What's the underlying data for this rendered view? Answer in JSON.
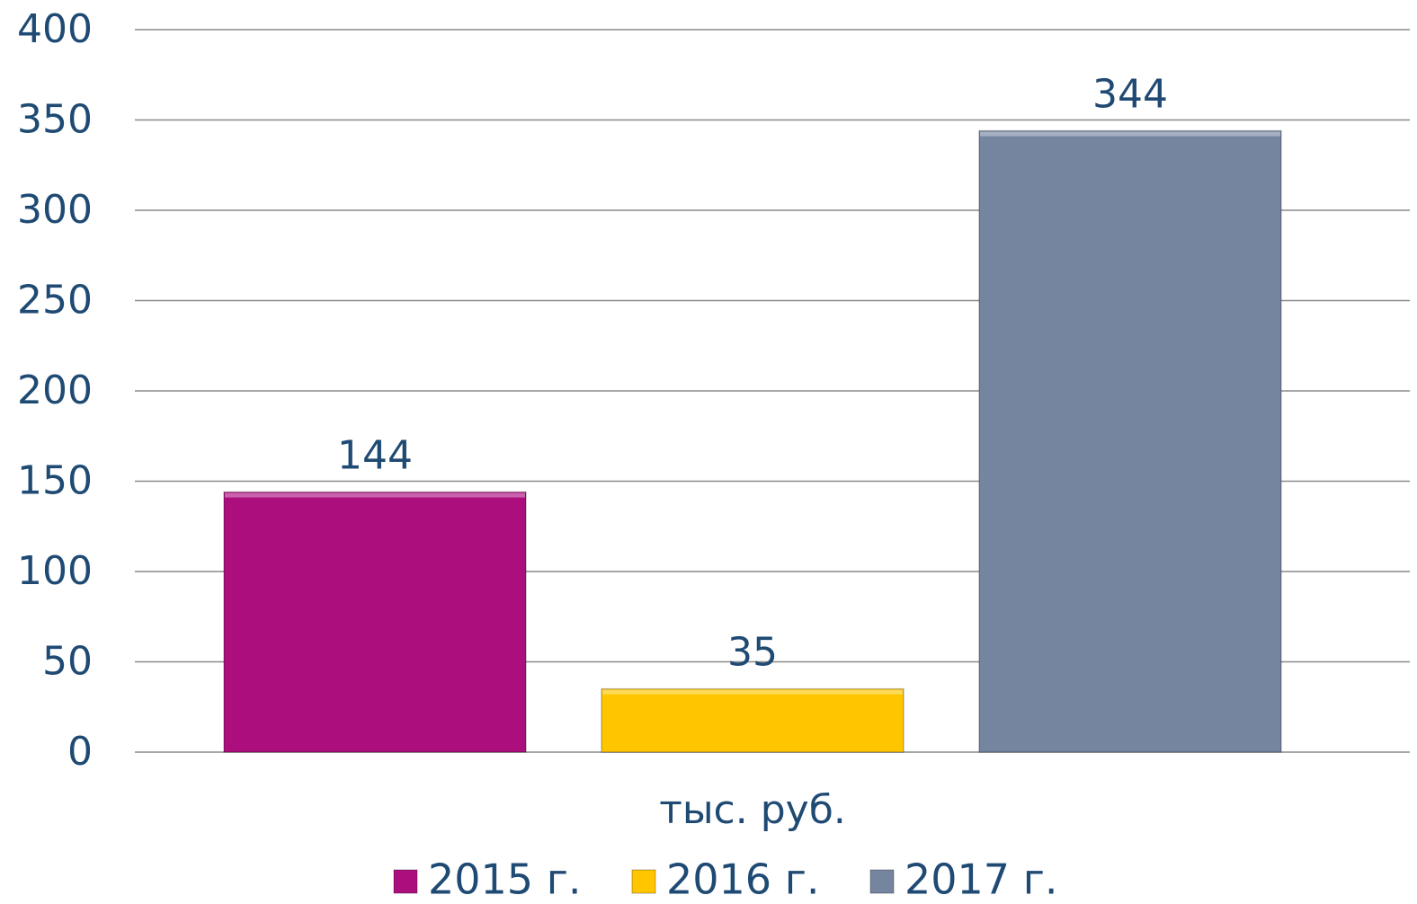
{
  "chart_data": {
    "type": "bar",
    "categories": [
      "тыс. руб."
    ],
    "series": [
      {
        "name": "2015 г.",
        "color": "#ad0e7e",
        "values": [
          144
        ]
      },
      {
        "name": "2016 г.",
        "color": "#ffc600",
        "values": [
          35
        ]
      },
      {
        "name": "2017 г.",
        "color": "#7585a0",
        "values": [
          344
        ]
      }
    ],
    "ylim": [
      0,
      400
    ],
    "yticks": [
      0,
      50,
      100,
      150,
      200,
      250,
      300,
      350,
      400
    ],
    "grid": true,
    "legend": "bottom"
  }
}
